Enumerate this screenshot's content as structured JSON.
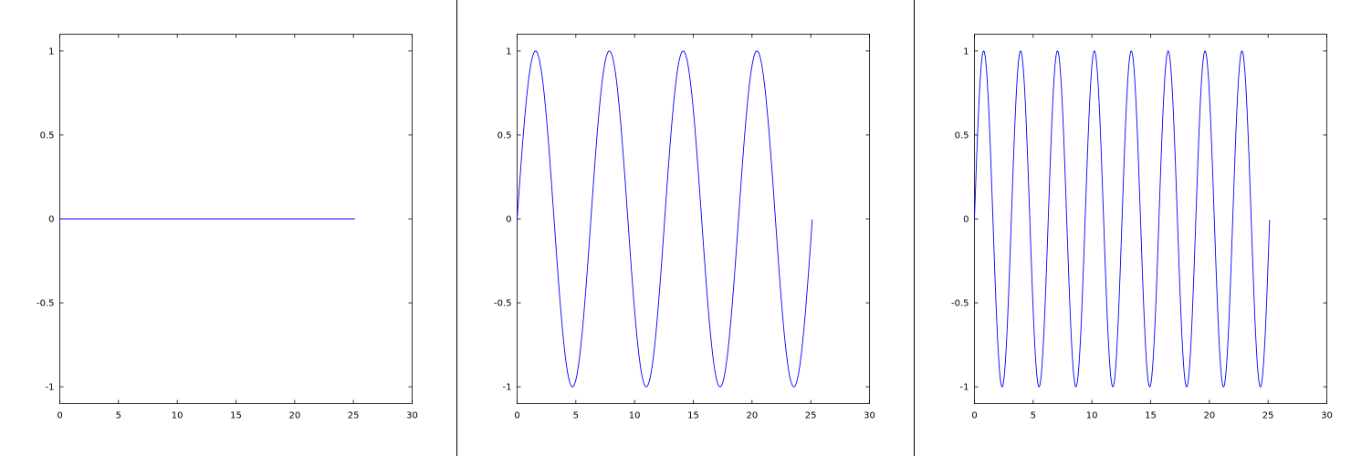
{
  "chart_data": [
    {
      "type": "line",
      "xlim": [
        0,
        30
      ],
      "ylim": [
        -1.1,
        1.1
      ],
      "x_ticks": [
        0,
        5,
        10,
        15,
        20,
        25,
        30
      ],
      "y_ticks": [
        1,
        0.5,
        0,
        -0.5,
        -1
      ],
      "x_tick_labels": [
        "0",
        "5",
        "10",
        "15",
        "20",
        "25",
        "30"
      ],
      "y_tick_labels": [
        "1",
        "0.5",
        "0",
        "-0.5",
        "-1"
      ],
      "grid": false,
      "series": [
        {
          "function": "y = sin(0*x)",
          "x_range": [
            0,
            25.13
          ],
          "color": "#0000ff",
          "x": [
            0,
            25.13
          ],
          "y": [
            0,
            0
          ]
        }
      ]
    },
    {
      "type": "line",
      "xlim": [
        0,
        30
      ],
      "ylim": [
        -1.1,
        1.1
      ],
      "x_ticks": [
        0,
        5,
        10,
        15,
        20,
        25,
        30
      ],
      "y_ticks": [
        1,
        0.5,
        0,
        -0.5,
        -1
      ],
      "x_tick_labels": [
        "0",
        "5",
        "10",
        "15",
        "20",
        "25",
        "30"
      ],
      "y_tick_labels": [
        "1",
        "0.5",
        "0",
        "-0.5",
        "-1"
      ],
      "grid": false,
      "series": [
        {
          "function": "y = sin(1*x)",
          "x_range": [
            0,
            25.13
          ],
          "color": "#0000ff",
          "x": [
            0,
            1.57,
            4.71,
            7.85,
            10.99,
            14.14,
            17.28,
            20.42,
            23.56,
            25.13
          ],
          "y": [
            0,
            1,
            -1,
            1,
            -1,
            1,
            -1,
            1,
            -1,
            0
          ]
        }
      ]
    },
    {
      "type": "line",
      "xlim": [
        0,
        30
      ],
      "ylim": [
        -1.1,
        1.1
      ],
      "x_ticks": [
        0,
        5,
        10,
        15,
        20,
        25,
        30
      ],
      "y_ticks": [
        1,
        0.5,
        0,
        -0.5,
        -1
      ],
      "x_tick_labels": [
        "0",
        "5",
        "10",
        "15",
        "20",
        "25",
        "30"
      ],
      "y_tick_labels": [
        "1",
        "0.5",
        "0",
        "-0.5",
        "-1"
      ],
      "grid": false,
      "series": [
        {
          "function": "y = sin(2*x)",
          "x_range": [
            0,
            25.13
          ],
          "color": "#0000ff",
          "x": [
            0,
            0.79,
            2.36,
            3.93,
            5.5,
            7.07,
            8.64,
            10.21,
            11.78,
            13.35,
            14.92,
            16.49,
            18.06,
            19.63,
            21.21,
            22.78,
            24.35,
            25.13
          ],
          "y": [
            0,
            1,
            -1,
            1,
            -1,
            1,
            -1,
            1,
            -1,
            1,
            -1,
            1,
            -1,
            1,
            -1,
            1,
            -1,
            0
          ]
        }
      ]
    }
  ]
}
